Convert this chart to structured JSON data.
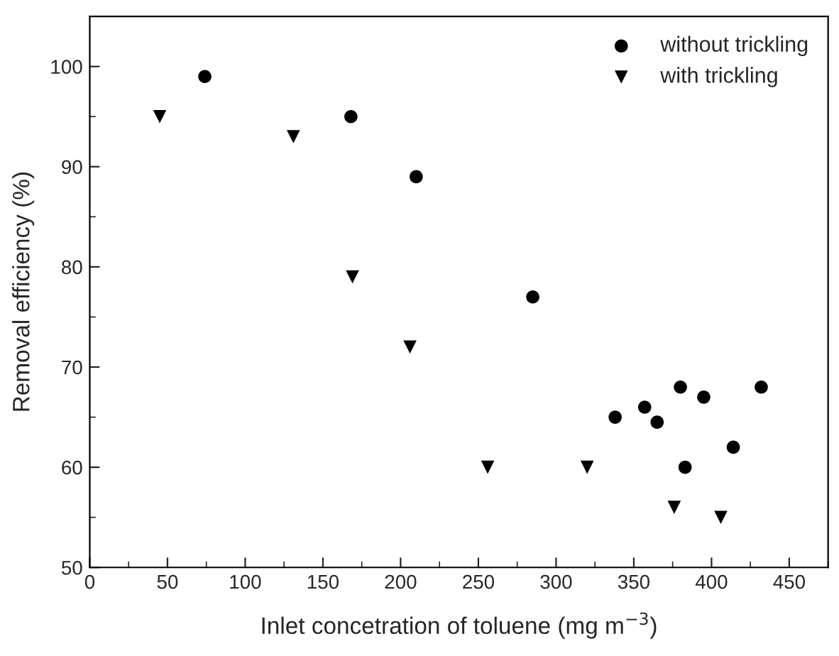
{
  "chart_data": {
    "type": "scatter",
    "xlabel": "Inlet concetration of toluene (mg m$^{−3}$)",
    "ylabel": "Removal efficiency (%)",
    "xlim": [
      0,
      475
    ],
    "xticks": [
      0,
      50,
      100,
      150,
      200,
      250,
      300,
      350,
      400,
      450
    ],
    "ylim": [
      50,
      105
    ],
    "yticks": [
      50,
      60,
      70,
      80,
      90,
      100
    ],
    "grid": false,
    "legend": "top right",
    "series": [
      {
        "name": "without trickling",
        "color": "#000000",
        "marker": "circle",
        "x": [
          74,
          168,
          210,
          285,
          338,
          357,
          365,
          380,
          383,
          395,
          414,
          432
        ],
        "values": [
          99,
          95,
          89,
          77,
          65,
          66,
          64.5,
          68,
          60,
          67,
          62,
          68
        ]
      },
      {
        "name": "with trickling",
        "color": "#000000",
        "marker": "triangle",
        "x": [
          45,
          131,
          169,
          206,
          256,
          320,
          376,
          406
        ],
        "values": [
          95,
          93,
          79,
          72,
          60,
          60,
          56,
          55
        ]
      }
    ]
  }
}
